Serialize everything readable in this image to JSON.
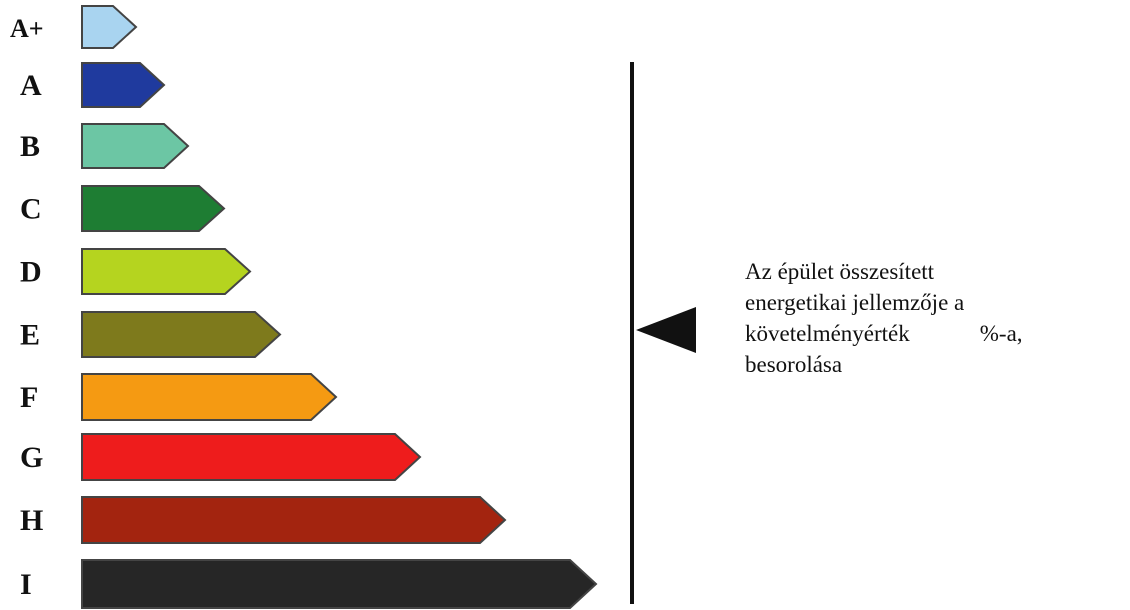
{
  "energy_classes": [
    {
      "label": "A+",
      "color": "#a9d4f0",
      "rank": 1
    },
    {
      "label": "A",
      "color": "#1f3a9e",
      "rank": 2
    },
    {
      "label": "B",
      "color": "#6cc6a4",
      "rank": 3
    },
    {
      "label": "C",
      "color": "#1e7d33",
      "rank": 4
    },
    {
      "label": "D",
      "color": "#b5d41f",
      "rank": 5
    },
    {
      "label": "E",
      "color": "#7e7a1c",
      "rank": 6
    },
    {
      "label": "F",
      "color": "#f59a12",
      "rank": 7
    },
    {
      "label": "G",
      "color": "#ee1c1c",
      "rank": 8
    },
    {
      "label": "H",
      "color": "#a3240f",
      "rank": 9
    },
    {
      "label": "I",
      "color": "#262626",
      "rank": 10
    }
  ],
  "indicator": {
    "line_1": "Az épület összesített",
    "line_2": "energetikai jellemzője a",
    "line_3a": "követelményérték",
    "line_3b": "%-a,",
    "line_4": "besorolása"
  }
}
